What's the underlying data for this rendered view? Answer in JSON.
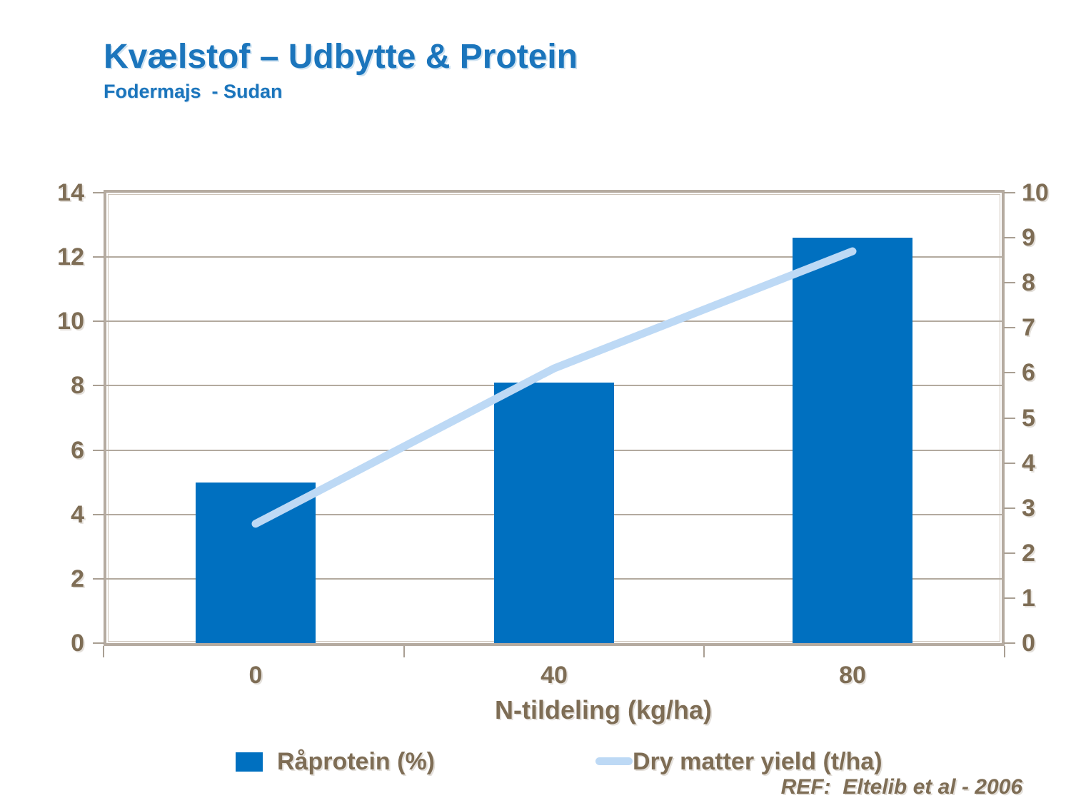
{
  "header": {
    "title": "Kvælstof – Udbytte & Protein",
    "subtitle": "Fodermajs  - Sudan"
  },
  "chart_data": {
    "type": "bar",
    "subtype": "bar+line combo, dual y-axes",
    "categories": [
      "0",
      "40",
      "80"
    ],
    "series": [
      {
        "name": "Råprotein (%)",
        "type": "bar",
        "axis": "left",
        "values": [
          5.0,
          8.1,
          12.6
        ],
        "color": "#0070c0"
      },
      {
        "name": "Dry matter yield (t/ha)",
        "type": "line",
        "axis": "right",
        "values": [
          2.65,
          6.1,
          8.7
        ],
        "color": "#bdd9f5"
      }
    ],
    "title": "Kvælstof – Udbytte & Protein",
    "subtitle": "Fodermajs - Sudan",
    "xlabel": "N-tildeling (kg/ha)",
    "left_axis": {
      "min": 0,
      "max": 14,
      "step": 2,
      "ticks": [
        "0",
        "2",
        "4",
        "6",
        "8",
        "10",
        "12",
        "14"
      ]
    },
    "right_axis": {
      "min": 0,
      "max": 10,
      "step": 1,
      "ticks": [
        "0",
        "1",
        "2",
        "3",
        "4",
        "5",
        "6",
        "7",
        "8",
        "9",
        "10"
      ]
    },
    "grid": "horizontal gridlines at left-axis steps",
    "legend_position": "bottom"
  },
  "legend": {
    "items": [
      {
        "label": "Råprotein (%)",
        "swatch": "bar-square"
      },
      {
        "label": "Dry matter yield (t/ha)",
        "swatch": "line-segment"
      }
    ]
  },
  "footer": {
    "ref": "REF:  Eltelib et al - 2006"
  },
  "colors": {
    "title_blue": "#1b75bc",
    "bar_blue": "#0070c0",
    "line_light_blue": "#bdd9f5",
    "axis_text_brown": "#7e6d55",
    "gridline": "#b3aa9f",
    "plot_frame": "#b5aba0",
    "background": "#ffffff"
  }
}
